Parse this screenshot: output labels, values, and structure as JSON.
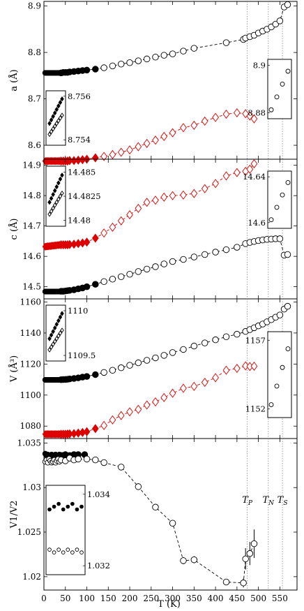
{
  "chart_data": {
    "type": "scatter",
    "shared_x": {
      "label": "T (K)",
      "range": [
        0,
        590
      ],
      "ticks": [
        0,
        50,
        100,
        150,
        200,
        250,
        300,
        350,
        400,
        450,
        500,
        550
      ],
      "tick_labels": [
        "0",
        "50",
        "100",
        "150",
        "200",
        "250",
        "300",
        "350",
        "400",
        "450",
        "500",
        "550"
      ]
    },
    "transition_lines": [
      {
        "label": "T_P",
        "x": 474
      },
      {
        "label": "T_N",
        "x": 523
      },
      {
        "label": "T_S",
        "x": 556
      }
    ],
    "transition_labels_panel": 3,
    "panels": [
      {
        "ylabel": "a (Å)",
        "ylim": [
          8.57,
          8.91
        ],
        "yticks": [
          8.6,
          8.7,
          8.8,
          8.9
        ],
        "ytick_labels": [
          "8.6",
          "8.7",
          "8.8",
          "8.9"
        ],
        "series": [
          {
            "marker": "circle",
            "color": "#000000",
            "fill_x": 120,
            "x": [
              3,
              5,
              7,
              9,
              11,
              13,
              15,
              17,
              19,
              21,
              23,
              25,
              27,
              29,
              31,
              33,
              35,
              37,
              40,
              45,
              50,
              55,
              60,
              70,
              80,
              90,
              100,
              120,
              140,
              160,
              180,
              200,
              220,
              240,
              260,
              280,
              300,
              325,
              350,
              425,
              465,
              470,
              480,
              490,
              500,
              510,
              520,
              530,
              540,
              550,
              560,
              568
            ],
            "y": [
              8.756,
              8.756,
              8.756,
              8.756,
              8.756,
              8.756,
              8.756,
              8.756,
              8.756,
              8.756,
              8.756,
              8.756,
              8.756,
              8.756,
              8.756,
              8.756,
              8.756,
              8.756,
              8.756,
              8.757,
              8.757,
              8.757,
              8.758,
              8.759,
              8.76,
              8.761,
              8.762,
              8.764,
              8.767,
              8.771,
              8.775,
              8.778,
              8.782,
              8.786,
              8.79,
              8.794,
              8.797,
              8.803,
              8.809,
              8.821,
              8.828,
              8.831,
              8.834,
              8.837,
              8.842,
              8.846,
              8.85,
              8.855,
              8.861,
              8.868,
              8.898,
              8.903
            ]
          },
          {
            "marker": "diamond",
            "color": "#dd0000",
            "fill_x": 120,
            "x": [
              3,
              5,
              7,
              9,
              11,
              13,
              15,
              17,
              19,
              21,
              23,
              25,
              27,
              29,
              31,
              33,
              35,
              37,
              40,
              45,
              50,
              55,
              60,
              70,
              80,
              90,
              100,
              120,
              140,
              160,
              180,
              200,
              220,
              240,
              260,
              280,
              300,
              325,
              350,
              375,
              400,
              425,
              450,
              470,
              480,
              490
            ],
            "y": [
              8.566,
              8.566,
              8.566,
              8.566,
              8.566,
              8.566,
              8.566,
              8.566,
              8.566,
              8.566,
              8.566,
              8.566,
              8.566,
              8.566,
              8.566,
              8.566,
              8.566,
              8.566,
              8.566,
              8.566,
              8.566,
              8.566,
              8.567,
              8.567,
              8.568,
              8.569,
              8.57,
              8.573,
              8.576,
              8.58,
              8.585,
              8.59,
              8.597,
              8.604,
              8.611,
              8.619,
              8.627,
              8.638,
              8.643,
              8.652,
              8.66,
              8.667,
              8.67,
              8.668,
              8.663,
              8.657
            ]
          }
        ],
        "insets": [
          {
            "side": "left",
            "yticks": [
              8.754,
              8.756
            ],
            "ytick_labels": [
              "8.754",
              "8.756"
            ]
          },
          {
            "side": "right",
            "yticks": [
              8.88,
              8.9
            ],
            "ytick_labels": [
              "8.88",
              "8.9"
            ]
          }
        ]
      },
      {
        "ylabel": "c (Å)",
        "ylim": [
          14.46,
          14.92
        ],
        "yticks": [
          14.5,
          14.6,
          14.7,
          14.8,
          14.9
        ],
        "ytick_labels": [
          "14.5",
          "14.6",
          "14.7",
          "14.8",
          "14.9"
        ],
        "series": [
          {
            "marker": "circle",
            "color": "#000000",
            "fill_x": 120,
            "x": [
              3,
              5,
              7,
              9,
              11,
              13,
              15,
              17,
              19,
              21,
              23,
              25,
              27,
              29,
              31,
              33,
              35,
              37,
              40,
              45,
              50,
              55,
              60,
              70,
              80,
              90,
              100,
              120,
              140,
              160,
              180,
              200,
              220,
              240,
              260,
              280,
              300,
              325,
              350,
              375,
              400,
              425,
              450,
              470,
              480,
              490,
              500,
              510,
              520,
              530,
              540,
              550,
              560,
              568
            ],
            "y": [
              14.484,
              14.484,
              14.484,
              14.484,
              14.484,
              14.484,
              14.484,
              14.484,
              14.484,
              14.484,
              14.484,
              14.484,
              14.484,
              14.484,
              14.484,
              14.484,
              14.484,
              14.484,
              14.485,
              14.485,
              14.486,
              14.487,
              14.488,
              14.49,
              14.493,
              14.496,
              14.5,
              14.508,
              14.517,
              14.525,
              14.533,
              14.541,
              14.55,
              14.558,
              14.566,
              14.575,
              14.583,
              14.59,
              14.598,
              14.606,
              14.614,
              14.622,
              14.63,
              14.642,
              14.646,
              14.649,
              14.652,
              14.654,
              14.656,
              14.657,
              14.658,
              14.658,
              14.604,
              14.606
            ]
          },
          {
            "marker": "diamond",
            "color": "#dd0000",
            "fill_x": 120,
            "x": [
              3,
              5,
              7,
              9,
              11,
              13,
              15,
              17,
              19,
              21,
              23,
              25,
              27,
              29,
              31,
              33,
              35,
              37,
              40,
              45,
              50,
              55,
              60,
              70,
              80,
              90,
              100,
              120,
              140,
              160,
              180,
              200,
              220,
              240,
              260,
              280,
              300,
              325,
              350,
              375,
              400,
              425,
              450,
              470,
              480,
              490
            ],
            "y": [
              14.632,
              14.632,
              14.633,
              14.633,
              14.633,
              14.634,
              14.634,
              14.634,
              14.635,
              14.635,
              14.635,
              14.636,
              14.636,
              14.636,
              14.637,
              14.637,
              14.637,
              14.638,
              14.638,
              14.638,
              14.638,
              14.638,
              14.639,
              14.64,
              14.642,
              14.644,
              14.647,
              14.66,
              14.677,
              14.696,
              14.717,
              14.737,
              14.758,
              14.778,
              14.785,
              14.795,
              14.8,
              14.802,
              14.807,
              14.823,
              14.84,
              14.865,
              14.876,
              14.88,
              14.887,
              14.905
            ]
          }
        ],
        "insets": [
          {
            "side": "left",
            "yticks": [
              14.48,
              14.4825,
              14.485
            ],
            "ytick_labels": [
              "14.48",
              "14.4825",
              "14.485"
            ]
          },
          {
            "side": "right",
            "yticks": [
              14.6,
              14.64
            ],
            "ytick_labels": [
              "14.6",
              "14.64"
            ]
          }
        ]
      },
      {
        "ylabel": "V (Å³)",
        "ylim": [
          1072,
          1162
        ],
        "yticks": [
          1080,
          1100,
          1120,
          1140,
          1160
        ],
        "ytick_labels": [
          "1080",
          "1100",
          "1120",
          "1140",
          "1160"
        ],
        "series": [
          {
            "marker": "circle",
            "color": "#000000",
            "fill_x": 120,
            "x": [
              3,
              5,
              7,
              9,
              11,
              13,
              15,
              17,
              19,
              21,
              23,
              25,
              27,
              29,
              31,
              33,
              35,
              37,
              40,
              45,
              50,
              55,
              60,
              70,
              80,
              90,
              100,
              120,
              140,
              160,
              180,
              200,
              220,
              240,
              260,
              280,
              300,
              325,
              350,
              375,
              400,
              425,
              450,
              470,
              480,
              490,
              500,
              510,
              520,
              530,
              540,
              550,
              560,
              568
            ],
            "y": [
              1109.8,
              1109.8,
              1109.8,
              1109.8,
              1109.8,
              1109.8,
              1109.8,
              1109.8,
              1109.8,
              1109.8,
              1109.8,
              1109.8,
              1109.8,
              1109.8,
              1109.8,
              1109.8,
              1109.8,
              1109.8,
              1109.9,
              1110.0,
              1110.1,
              1110.2,
              1110.4,
              1110.7,
              1111.1,
              1111.6,
              1112.0,
              1113.2,
              1114.6,
              1116.0,
              1117.6,
              1119.2,
              1120.8,
              1122.4,
              1124.0,
              1125.6,
              1127.4,
              1129.4,
              1131.6,
              1133.6,
              1135.6,
              1137.6,
              1139.2,
              1141.0,
              1142.2,
              1143.4,
              1144.6,
              1145.8,
              1147.2,
              1148.6,
              1150.2,
              1151.6,
              1155.4,
              1157.2
            ]
          },
          {
            "marker": "diamond",
            "color": "#dd0000",
            "fill_x": 120,
            "x": [
              3,
              5,
              7,
              9,
              11,
              13,
              15,
              17,
              19,
              21,
              23,
              25,
              27,
              29,
              31,
              33,
              35,
              37,
              40,
              45,
              50,
              55,
              60,
              70,
              80,
              90,
              100,
              120,
              140,
              160,
              180,
              200,
              220,
              240,
              260,
              280,
              300,
              325,
              350,
              375,
              400,
              425,
              450,
              470,
              480,
              490
            ],
            "y": [
              1074.8,
              1074.8,
              1074.8,
              1074.8,
              1074.8,
              1074.8,
              1074.8,
              1074.8,
              1074.8,
              1074.8,
              1074.8,
              1074.8,
              1074.8,
              1074.8,
              1074.8,
              1074.8,
              1074.8,
              1074.8,
              1074.8,
              1074.8,
              1074.8,
              1074.9,
              1075.0,
              1075.2,
              1075.5,
              1075.9,
              1076.4,
              1078.4,
              1080.4,
              1084.0,
              1086.8,
              1089.2,
              1090.8,
              1093.6,
              1095.6,
              1098.4,
              1101.2,
              1104.4,
              1105.6,
              1108.2,
              1111.2,
              1116.0,
              1117.2,
              1118.8,
              1118.4,
              1118.6
            ]
          }
        ],
        "insets": [
          {
            "side": "left",
            "yticks": [
              1109.5,
              1110
            ],
            "ytick_labels": [
              "1109.5",
              "1110"
            ]
          },
          {
            "side": "right",
            "yticks": [
              1152,
              1157
            ],
            "ytick_labels": [
              "1152",
              "1157"
            ]
          }
        ]
      },
      {
        "ylabel": "V1/V2",
        "ylim": [
          1.0185,
          1.0355
        ],
        "yticks": [
          1.02,
          1.025,
          1.03,
          1.035
        ],
        "ytick_labels": [
          "1.02",
          "1.025",
          "1.03",
          "1.035"
        ],
        "series": [
          {
            "marker": "circle",
            "color": "#000000",
            "fill_x": 95,
            "x": [
              3,
              6,
              9,
              12,
              15,
              18,
              21,
              24,
              27,
              30,
              33,
              36,
              40,
              45,
              50,
              60,
              70,
              80,
              95
            ],
            "y": [
              1.0338,
              1.0336,
              1.0337,
              1.0334,
              1.0335,
              1.0337,
              1.0336,
              1.0334,
              1.0337,
              1.0336,
              1.0335,
              1.0337,
              1.0336,
              1.0336,
              1.0337,
              1.0336,
              1.0337,
              1.0337,
              1.0337
            ]
          },
          {
            "marker": "circle",
            "color": "#000000",
            "fill_x": 0,
            "x": [
              3,
              6,
              9,
              12,
              15,
              18,
              21,
              24,
              27,
              30,
              33,
              36,
              40,
              50,
              60,
              70,
              80,
              100,
              120,
              140,
              180,
              220,
              260,
              300,
              325,
              350,
              425,
              465,
              470,
              480,
              490
            ],
            "y": [
              1.0329,
              1.0331,
              1.0328,
              1.0332,
              1.033,
              1.0328,
              1.0329,
              1.0331,
              1.0328,
              1.033,
              1.0332,
              1.0329,
              1.0331,
              1.033,
              1.0333,
              1.0331,
              1.0332,
              1.0332,
              1.0331,
              1.0328,
              1.0323,
              1.0301,
              1.0278,
              1.026,
              1.0218,
              1.0219,
              1.0194,
              1.0193,
              1.022,
              1.0226,
              1.0237
            ],
            "errors": [
              0,
              0,
              0,
              0,
              0,
              0,
              0,
              0,
              0,
              0,
              0,
              0,
              0,
              0,
              0,
              0,
              0,
              0,
              0,
              0,
              0,
              0,
              0,
              0,
              0.0004,
              0.0004,
              0.0003,
              0.0005,
              0.0012,
              0.0013,
              0.0016
            ]
          }
        ],
        "insets": [
          {
            "side": "left",
            "yticks": [
              1.032,
              1.034
            ],
            "ytick_labels": [
              "1.032",
              "1.034"
            ]
          }
        ]
      }
    ]
  }
}
